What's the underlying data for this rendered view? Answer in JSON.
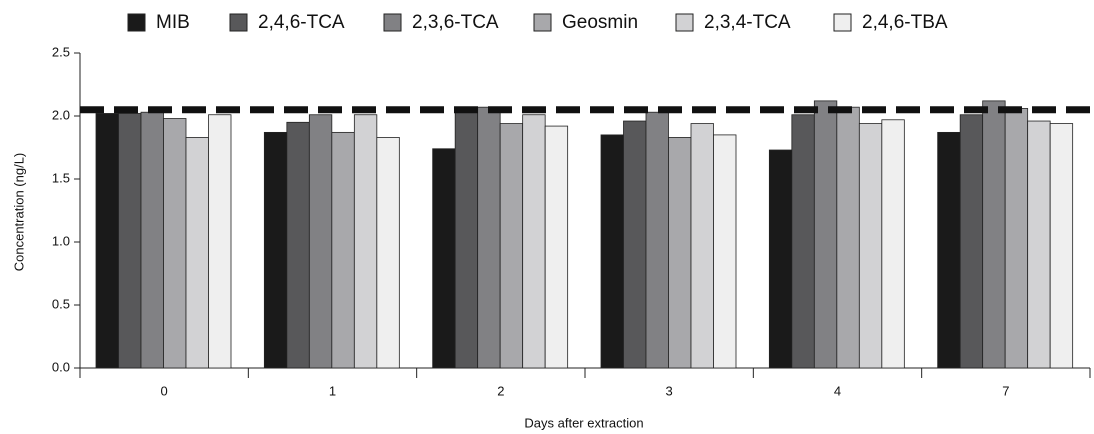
{
  "chart_data": {
    "type": "bar",
    "x_label": "Days after extraction",
    "y_label": "Concentration (ng/L)",
    "categories": [
      "0",
      "1",
      "2",
      "3",
      "4",
      "7"
    ],
    "series": [
      {
        "name": "MIB",
        "color": "#1a1a1a",
        "values": [
          2.02,
          1.87,
          1.74,
          1.85,
          1.73,
          1.87
        ]
      },
      {
        "name": "2,4,6-TCA",
        "color": "#58585a",
        "values": [
          2.02,
          1.95,
          2.05,
          1.96,
          2.01,
          2.01
        ]
      },
      {
        "name": "2,3,6-TCA",
        "color": "#818184",
        "values": [
          2.03,
          2.01,
          2.07,
          2.03,
          2.12,
          2.12
        ]
      },
      {
        "name": "Geosmin",
        "color": "#a8a8ab",
        "values": [
          1.98,
          1.87,
          1.94,
          1.83,
          2.07,
          2.06
        ]
      },
      {
        "name": "2,3,4-TCA",
        "color": "#d2d2d4",
        "values": [
          1.83,
          2.01,
          2.01,
          1.94,
          1.94,
          1.96
        ]
      },
      {
        "name": "2,4,6-TBA",
        "color": "#efefef",
        "values": [
          2.01,
          1.83,
          1.92,
          1.85,
          1.97,
          1.94
        ]
      }
    ],
    "reference_line": 2.05,
    "ylim": [
      0,
      2.5
    ],
    "yticks": [
      {
        "value": 0,
        "label": "0.0"
      },
      0.5,
      {
        "value": 1,
        "label": "1.0"
      },
      1.5,
      {
        "value": 2,
        "label": "2.0"
      },
      2.5
    ]
  }
}
